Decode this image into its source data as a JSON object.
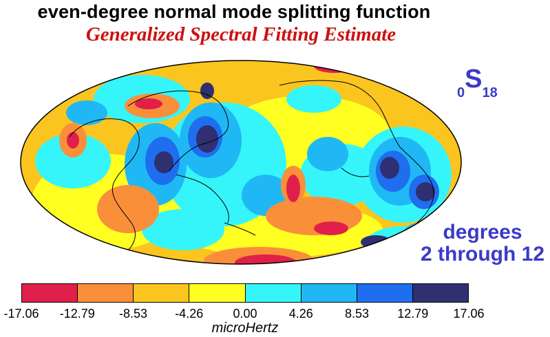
{
  "title": "even-degree normal mode splitting function",
  "subtitle": "Generalized Spectral Fitting Estimate",
  "mode_label": {
    "pre": "0",
    "main": "S",
    "sub": "18"
  },
  "degrees_label": {
    "line1": "degrees",
    "line2": "2 through 12"
  },
  "colorbar": {
    "colors": [
      "#e0204a",
      "#fa8f3a",
      "#fbc51f",
      "#ffff21",
      "#35f5fa",
      "#1fb8f5",
      "#1f6eef",
      "#2f2f72"
    ],
    "ticks": [
      "-17.06",
      "-12.79",
      "-8.53",
      "-4.26",
      "0.00",
      "4.26",
      "8.53",
      "12.79",
      "17.06"
    ],
    "unit": "microHertz"
  }
}
